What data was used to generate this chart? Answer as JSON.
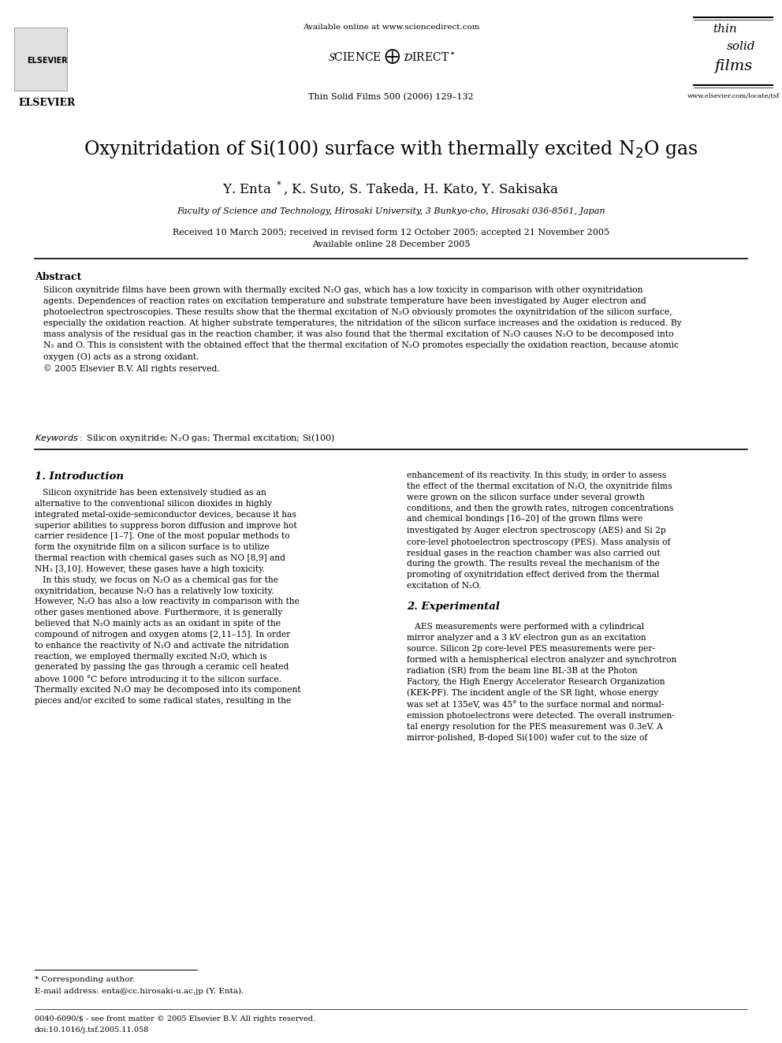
{
  "background_color": "#ffffff",
  "page_width": 9.92,
  "page_height": 13.23,
  "header_url": "Available online at www.sciencedirect.com",
  "journal_ref": "Thin Solid Films 500 (2006) 129–132",
  "website": "www.elsevier.com/locate/tsf",
  "title": "Oxynitridation of Si(100) surface with thermally excited N$_2$O gas",
  "authors": "Y. Enta *, K. Suto, S. Takeda, H. Kato, Y. Sakisaka",
  "affiliation": "Faculty of Science and Technology, Hirosaki University, 3 Bunkyo-cho, Hirosaki 036-8561, Japan",
  "received": "Received 10 March 2005; received in revised form 12 October 2005; accepted 21 November 2005",
  "available": "Available online 28 December 2005",
  "abstract_title": "Abstract",
  "abstract_text": "Silicon oxynitride films have been grown with thermally excited N₂O gas, which has a low toxicity in comparison with other oxynitridation agents. Dependences of reaction rates on excitation temperature and substrate temperature have been investigated by Auger electron and photoelectron spectroscopies. These results show that the thermal excitation of N₂O obviously promotes the oxynitridation of the silicon surface, especially the oxidation reaction. At higher substrate temperatures, the nitridation of the silicon surface increases and the oxidation is reduced. By mass analysis of the residual gas in the reaction chamber, it was also found that the thermal excitation of N₂O causes N₂O to be decomposed into N₂ and O. This is consistent with the obtained effect that the thermal excitation of N₂O promotes especially the oxidation reaction, because atomic oxygen (O) acts as a strong oxidant.\n© 2005 Elsevier B.V. All rights reserved.",
  "keywords_label": "Keywords:",
  "keywords_text": "Silicon oxynitride; N₂O gas; Thermal excitation; Si(100)",
  "section1_title": "1. Introduction",
  "section1_col1": "Silicon oxynitride has been extensively studied as an alternative to the conventional silicon dioxides in highly integrated metal-oxide-semiconductor devices, because it has superior abilities to suppress boron diffusion and improve hot carrier residence [1–7]. One of the most popular methods to form the oxynitride film on a silicon surface is to utilize thermal reaction with chemical gases such as NO [8,9] and NH₃ [3,10]. However, these gases have a high toxicity.\n    In this study, we focus on N₂O as a chemical gas for the oxynitridation, because N₂O has a relatively low toxicity. However, N₂O has also a low reactivity in comparison with the other gases mentioned above. Furthermore, it is generally believed that N₂O mainly acts as an oxidant in spite of the compound of nitrogen and oxygen atoms [2,11–15]. In order to enhance the reactivity of N₂O and activate the nitridation reaction, we employed thermally excited N₂O, which is generated by passing the gas through a ceramic cell heated above 1000 °C before introducing it to the silicon surface. Thermally excited N₂O may be decomposed into its component pieces and/or excited to some radical states, resulting in the",
  "section1_col2": "enhancement of its reactivity. In this study, in order to assess the effect of the thermal excitation of N₂O, the oxynitride films were grown on the silicon surface under several growth conditions, and then the growth rates, nitrogen concentrations and chemical bondings [16–20] of the grown films were investigated by Auger electron spectroscopy (AES) and Si 2p core-level photoelectron spectroscopy (PES). Mass analysis of residual gases in the reaction chamber was also carried out during the growth. The results reveal the mechanism of the promoting of oxynitridation effect derived from the thermal excitation of N₂O.",
  "section2_title": "2. Experimental",
  "section2_col2": "AES measurements were performed with a cylindrical mirror analyzer and a 3 kV electron gun as an excitation source. Silicon 2p core-level PES measurements were performed with a hemispherical electron analyzer and synchrotron radiation (SR) from the beam line BL-3B at the Photon Factory, the High Energy Accelerator Research Organization (KEK-PF). The incident angle of the SR light, whose energy was set at 135eV, was 45° to the surface normal and normal-emission photoelectrons were detected. The overall instrumental energy resolution for the PES measurement was 0.3eV. A mirror-polished, B-doped Si(100) wafer cut to the size of",
  "footnote_star": "* Corresponding author.",
  "footnote_email": "E-mail address: enta@cc.hirosaki-u.ac.jp (Y. Enta).",
  "footer_issn": "0040-6090/$ - see front matter © 2005 Elsevier B.V. All rights reserved.",
  "footer_doi": "doi:10.1016/j.tsf.2005.11.058"
}
